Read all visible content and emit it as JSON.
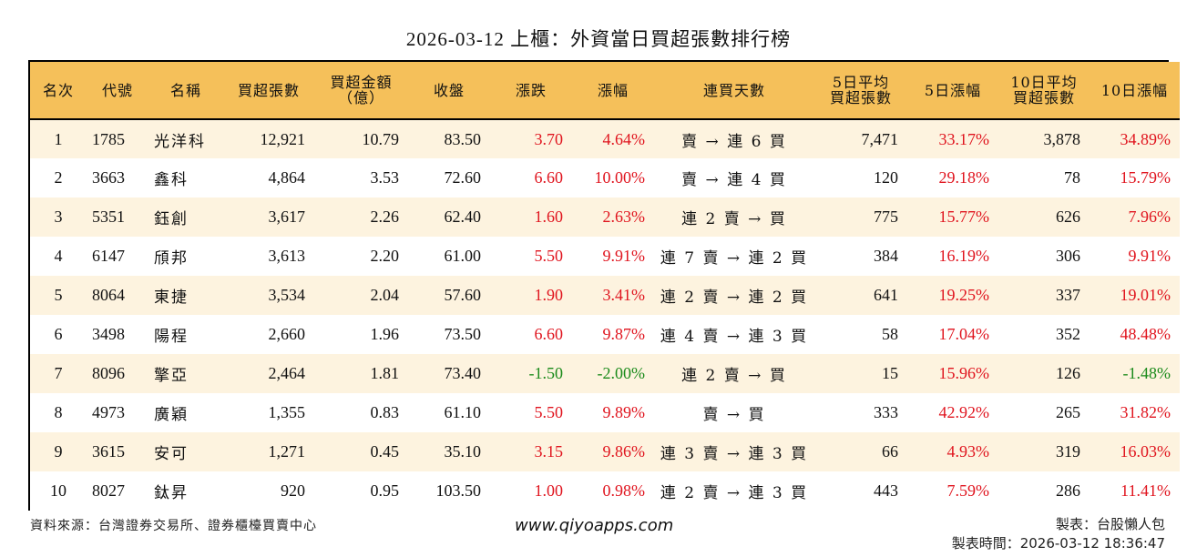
{
  "title": "2026-03-12 上櫃：外資當日買超張數排行榜",
  "colors": {
    "header_bg": "#F5C05A",
    "stripe_bg": "#FDF3DF",
    "up": "#E0141E",
    "down": "#1A8A1A",
    "border": "#000000"
  },
  "table": {
    "headers": [
      {
        "line1": "名次",
        "line2": ""
      },
      {
        "line1": "代號",
        "line2": ""
      },
      {
        "line1": "名稱",
        "line2": ""
      },
      {
        "line1": "買超張數",
        "line2": ""
      },
      {
        "line1": "買超金額",
        "line2": "（億）"
      },
      {
        "line1": "收盤",
        "line2": ""
      },
      {
        "line1": "漲跌",
        "line2": ""
      },
      {
        "line1": "漲幅",
        "line2": ""
      },
      {
        "line1": "連買天數",
        "line2": ""
      },
      {
        "line1": "5日平均",
        "line2": "買超張數"
      },
      {
        "line1": "5日漲幅",
        "line2": ""
      },
      {
        "line1": "10日平均",
        "line2": "買超張數"
      },
      {
        "line1": "10日漲幅",
        "line2": ""
      }
    ],
    "rows": [
      {
        "rank": "1",
        "code": "1785",
        "name": "光洋科",
        "net_buy_lots": "12,921",
        "net_buy_amount": "10.79",
        "close": "83.50",
        "change": "3.70",
        "change_dir": "up",
        "pct": "4.64%",
        "pct_dir": "up",
        "streak": "賣 → 連 6 買",
        "avg5_lots": "7,471",
        "pct5": "33.17%",
        "pct5_dir": "up",
        "avg10_lots": "3,878",
        "pct10": "34.89%",
        "pct10_dir": "up"
      },
      {
        "rank": "2",
        "code": "3663",
        "name": "鑫科",
        "net_buy_lots": "4,864",
        "net_buy_amount": "3.53",
        "close": "72.60",
        "change": "6.60",
        "change_dir": "up",
        "pct": "10.00%",
        "pct_dir": "up",
        "streak": "賣 → 連 4 買",
        "avg5_lots": "120",
        "pct5": "29.18%",
        "pct5_dir": "up",
        "avg10_lots": "78",
        "pct10": "15.79%",
        "pct10_dir": "up"
      },
      {
        "rank": "3",
        "code": "5351",
        "name": "鈺創",
        "net_buy_lots": "3,617",
        "net_buy_amount": "2.26",
        "close": "62.40",
        "change": "1.60",
        "change_dir": "up",
        "pct": "2.63%",
        "pct_dir": "up",
        "streak": "連 2 賣 → 買",
        "avg5_lots": "775",
        "pct5": "15.77%",
        "pct5_dir": "up",
        "avg10_lots": "626",
        "pct10": "7.96%",
        "pct10_dir": "up"
      },
      {
        "rank": "4",
        "code": "6147",
        "name": "頎邦",
        "net_buy_lots": "3,613",
        "net_buy_amount": "2.20",
        "close": "61.00",
        "change": "5.50",
        "change_dir": "up",
        "pct": "9.91%",
        "pct_dir": "up",
        "streak": "連 7 賣 → 連 2 買",
        "avg5_lots": "384",
        "pct5": "16.19%",
        "pct5_dir": "up",
        "avg10_lots": "306",
        "pct10": "9.91%",
        "pct10_dir": "up"
      },
      {
        "rank": "5",
        "code": "8064",
        "name": "東捷",
        "net_buy_lots": "3,534",
        "net_buy_amount": "2.04",
        "close": "57.60",
        "change": "1.90",
        "change_dir": "up",
        "pct": "3.41%",
        "pct_dir": "up",
        "streak": "連 2 賣 → 連 2 買",
        "avg5_lots": "641",
        "pct5": "19.25%",
        "pct5_dir": "up",
        "avg10_lots": "337",
        "pct10": "19.01%",
        "pct10_dir": "up"
      },
      {
        "rank": "6",
        "code": "3498",
        "name": "陽程",
        "net_buy_lots": "2,660",
        "net_buy_amount": "1.96",
        "close": "73.50",
        "change": "6.60",
        "change_dir": "up",
        "pct": "9.87%",
        "pct_dir": "up",
        "streak": "連 4 賣 → 連 3 買",
        "avg5_lots": "58",
        "pct5": "17.04%",
        "pct5_dir": "up",
        "avg10_lots": "352",
        "pct10": "48.48%",
        "pct10_dir": "up"
      },
      {
        "rank": "7",
        "code": "8096",
        "name": "擎亞",
        "net_buy_lots": "2,464",
        "net_buy_amount": "1.81",
        "close": "73.40",
        "change": "-1.50",
        "change_dir": "down",
        "pct": "-2.00%",
        "pct_dir": "down",
        "streak": "連 2 賣 → 買",
        "avg5_lots": "15",
        "pct5": "15.96%",
        "pct5_dir": "up",
        "avg10_lots": "126",
        "pct10": "-1.48%",
        "pct10_dir": "down"
      },
      {
        "rank": "8",
        "code": "4973",
        "name": "廣穎",
        "net_buy_lots": "1,355",
        "net_buy_amount": "0.83",
        "close": "61.10",
        "change": "5.50",
        "change_dir": "up",
        "pct": "9.89%",
        "pct_dir": "up",
        "streak": "賣 → 買",
        "avg5_lots": "333",
        "pct5": "42.92%",
        "pct5_dir": "up",
        "avg10_lots": "265",
        "pct10": "31.82%",
        "pct10_dir": "up"
      },
      {
        "rank": "9",
        "code": "3615",
        "name": "安可",
        "net_buy_lots": "1,271",
        "net_buy_amount": "0.45",
        "close": "35.10",
        "change": "3.15",
        "change_dir": "up",
        "pct": "9.86%",
        "pct_dir": "up",
        "streak": "連 3 賣 → 連 3 買",
        "avg5_lots": "66",
        "pct5": "4.93%",
        "pct5_dir": "up",
        "avg10_lots": "319",
        "pct10": "16.03%",
        "pct10_dir": "up"
      },
      {
        "rank": "10",
        "code": "8027",
        "name": "鈦昇",
        "net_buy_lots": "920",
        "net_buy_amount": "0.95",
        "close": "103.50",
        "change": "1.00",
        "change_dir": "up",
        "pct": "0.98%",
        "pct_dir": "up",
        "streak": "連 2 賣 → 連 3 買",
        "avg5_lots": "443",
        "pct5": "7.59%",
        "pct5_dir": "up",
        "avg10_lots": "286",
        "pct10": "11.41%",
        "pct10_dir": "up"
      }
    ]
  },
  "footer": {
    "source": "資料來源：台灣證券交易所、證券櫃檯買賣中心",
    "website": "www.qiyoapps.com",
    "maker": "製表：台股懶人包",
    "made_time": "製表時間：2026-03-12 18:36:47"
  }
}
